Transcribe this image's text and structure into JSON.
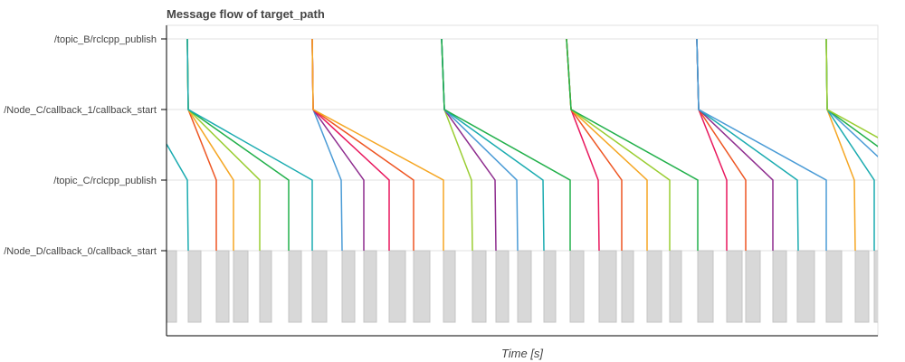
{
  "chart_data": {
    "type": "line",
    "title": "Message flow of target_path",
    "xlabel": "Time [s]",
    "ylabel": "",
    "xlim": [
      0,
      7.86
    ],
    "grid": true,
    "y_categories": [
      "/topic_B/rclcpp_publish",
      "/Node_C/callback_1/callback_start",
      "/topic_C/rclcpp_publish",
      "/Node_D/callback_0/callback_start"
    ],
    "flows": [
      {
        "color": "#1aabb0",
        "times": [
          null,
          -0.22,
          0.23,
          0.24
        ]
      },
      {
        "color": "#ee5522",
        "times": [
          0.23,
          0.24,
          0.55,
          0.55
        ]
      },
      {
        "color": "#f5a623",
        "times": [
          0.23,
          0.24,
          0.74,
          0.74
        ]
      },
      {
        "color": "#9acd32",
        "times": [
          0.23,
          0.24,
          1.03,
          1.03
        ]
      },
      {
        "color": "#22b04b",
        "times": [
          0.23,
          0.24,
          1.35,
          1.35
        ]
      },
      {
        "color": "#1aabb0",
        "times": [
          0.23,
          0.24,
          1.61,
          1.61
        ]
      },
      {
        "color": "#4a9bd6",
        "times": [
          1.61,
          1.62,
          1.93,
          1.94
        ]
      },
      {
        "color": "#8e2c8e",
        "times": [
          1.61,
          1.62,
          2.18,
          2.18
        ]
      },
      {
        "color": "#e8175d",
        "times": [
          1.61,
          1.62,
          2.46,
          2.46
        ]
      },
      {
        "color": "#ee5522",
        "times": [
          1.61,
          1.62,
          2.73,
          2.73
        ]
      },
      {
        "color": "#f5a623",
        "times": [
          1.61,
          1.62,
          3.06,
          3.06
        ]
      },
      {
        "color": "#9acd32",
        "times": [
          3.04,
          3.07,
          3.37,
          3.38
        ]
      },
      {
        "color": "#8e2c8e",
        "times": [
          3.04,
          3.07,
          3.63,
          3.64
        ]
      },
      {
        "color": "#4a9bd6",
        "times": [
          3.04,
          3.07,
          3.87,
          3.88
        ]
      },
      {
        "color": "#1aabb0",
        "times": [
          3.04,
          3.07,
          4.16,
          4.17
        ]
      },
      {
        "color": "#22b04b",
        "times": [
          3.04,
          3.07,
          4.46,
          4.46
        ]
      },
      {
        "color": "#e8175d",
        "times": [
          4.42,
          4.47,
          4.77,
          4.78
        ]
      },
      {
        "color": "#ee5522",
        "times": [
          4.42,
          4.47,
          5.03,
          5.03
        ]
      },
      {
        "color": "#f5a623",
        "times": [
          4.42,
          4.47,
          5.31,
          5.31
        ]
      },
      {
        "color": "#9acd32",
        "times": [
          4.42,
          4.47,
          5.56,
          5.56
        ]
      },
      {
        "color": "#22b04b",
        "times": [
          4.42,
          4.47,
          5.87,
          5.87
        ]
      },
      {
        "color": "#e8175d",
        "times": [
          5.86,
          5.88,
          6.19,
          6.19
        ]
      },
      {
        "color": "#ee5522",
        "times": [
          5.86,
          5.88,
          6.4,
          6.4
        ]
      },
      {
        "color": "#8e2c8e",
        "times": [
          5.86,
          5.88,
          6.7,
          6.7
        ]
      },
      {
        "color": "#1aabb0",
        "times": [
          5.86,
          5.88,
          6.97,
          6.98
        ]
      },
      {
        "color": "#4a9bd6",
        "times": [
          5.86,
          5.88,
          7.29,
          7.29
        ]
      },
      {
        "color": "#f5a623",
        "times": [
          7.29,
          7.3,
          7.6,
          7.61
        ]
      },
      {
        "color": "#1aabb0",
        "times": [
          7.29,
          7.3,
          7.82,
          7.82
        ]
      },
      {
        "color": "#4a9bd6",
        "times": [
          7.29,
          7.3,
          8.14,
          8.14
        ]
      },
      {
        "color": "#22b04b",
        "times": [
          7.29,
          7.3,
          8.37,
          8.37
        ]
      },
      {
        "color": "#9acd32",
        "times": [
          7.29,
          7.3,
          8.71,
          8.71
        ]
      }
    ],
    "callback_durations": [
      [
        0,
        0.11
      ],
      [
        0.24,
        0.38
      ],
      [
        0.55,
        0.69
      ],
      [
        0.74,
        0.9
      ],
      [
        1.03,
        1.16
      ],
      [
        1.35,
        1.49
      ],
      [
        1.61,
        1.77
      ],
      [
        1.94,
        2.08
      ],
      [
        2.18,
        2.32
      ],
      [
        2.46,
        2.64
      ],
      [
        2.73,
        2.91
      ],
      [
        3.06,
        3.19
      ],
      [
        3.38,
        3.53
      ],
      [
        3.64,
        3.78
      ],
      [
        3.88,
        4.03
      ],
      [
        4.17,
        4.3
      ],
      [
        4.46,
        4.61
      ],
      [
        4.78,
        4.97
      ],
      [
        5.03,
        5.16
      ],
      [
        5.31,
        5.47
      ],
      [
        5.56,
        5.69
      ],
      [
        5.87,
        6.04
      ],
      [
        6.19,
        6.36
      ],
      [
        6.4,
        6.56
      ],
      [
        6.7,
        6.85
      ],
      [
        6.97,
        7.16
      ],
      [
        7.29,
        7.46
      ],
      [
        7.61,
        7.76
      ],
      [
        7.82,
        7.9
      ]
    ],
    "duration_bar_color": "#d8d8d8"
  }
}
